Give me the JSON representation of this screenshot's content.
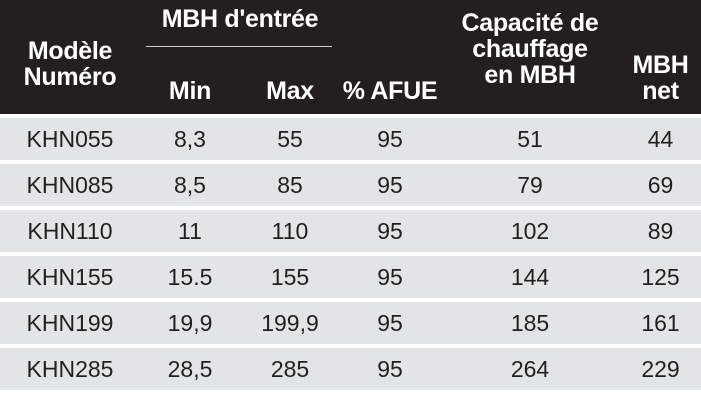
{
  "headers": {
    "model": [
      "Modèle",
      "Numéro"
    ],
    "input_group": "MBH d'entrée",
    "min": "Min",
    "max": "Max",
    "afue": "% AFUE",
    "capacity": [
      "Capacité de",
      "chauffage",
      "en MBH"
    ],
    "net": [
      "MBH",
      "net"
    ]
  },
  "rows": [
    {
      "model": "KHN055",
      "min": "8,3",
      "max": "55",
      "afue": "95",
      "capacity": "51",
      "net": "44"
    },
    {
      "model": "KHN085",
      "min": "8,5",
      "max": "85",
      "afue": "95",
      "capacity": "79",
      "net": "69"
    },
    {
      "model": "KHN110",
      "min": "11",
      "max": "110",
      "afue": "95",
      "capacity": "102",
      "net": "89"
    },
    {
      "model": "KHN155",
      "min": "15.5",
      "max": "155",
      "afue": "95",
      "capacity": "144",
      "net": "125"
    },
    {
      "model": "KHN199",
      "min": "19,9",
      "max": "199,9",
      "afue": "95",
      "capacity": "185",
      "net": "161"
    },
    {
      "model": "KHN285",
      "min": "28,5",
      "max": "285",
      "afue": "95",
      "capacity": "264",
      "net": "229"
    }
  ],
  "colors": {
    "header_bg": "#231f20",
    "header_text": "#ffffff",
    "row_bg": "#e3e4e5",
    "row_text": "#231f20"
  }
}
